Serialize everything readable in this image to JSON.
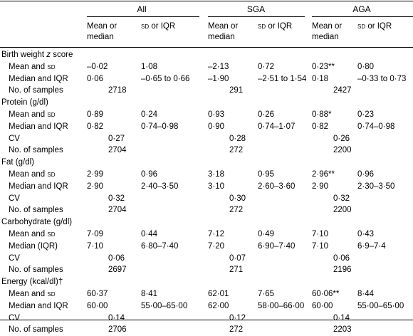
{
  "header": {
    "groups": [
      "All",
      "SGA",
      "AGA"
    ],
    "sub1_line1": "Mean or",
    "sub1_line2": "median",
    "sub2_sd": "SD",
    "sub2_rest": " or IQR"
  },
  "rows": [
    {
      "type": "section",
      "label": "Birth weight ",
      "label_italic": "z",
      "label_after": " score"
    },
    {
      "type": "data",
      "label": "Mean and ",
      "label_sc": "SD",
      "cells": [
        "–0·02",
        "1·08",
        "–2·13",
        "0·72",
        "0·23**",
        "0·80"
      ]
    },
    {
      "type": "data",
      "label": "Median and IQR",
      "cells": [
        "0·06",
        "–0·65 to 0·66",
        "–1·90",
        "–2·51 to 1·54",
        "0·18",
        "–0·33 to 0·73"
      ]
    },
    {
      "type": "count",
      "label": "No. of samples",
      "cells": [
        "2718",
        "291",
        "2427"
      ]
    },
    {
      "type": "section",
      "label": "Protein (g/dl)"
    },
    {
      "type": "data",
      "label": "Mean and ",
      "label_sc": "SD",
      "cells": [
        "0·89",
        "0·24",
        "0·93",
        "0·26",
        "0·88*",
        "0·23"
      ]
    },
    {
      "type": "data",
      "label": "Median and IQR",
      "cells": [
        "0·82",
        "0·74–0·98",
        "0·90",
        "0·74–1·07",
        "0·82",
        "0·74–0·98"
      ]
    },
    {
      "type": "count",
      "label": "CV",
      "cells": [
        "0·27",
        "0·28",
        "0·26"
      ]
    },
    {
      "type": "count",
      "label": "No. of samples",
      "cells": [
        "2704",
        "272",
        "2200"
      ]
    },
    {
      "type": "section",
      "label": "Fat (g/dl)"
    },
    {
      "type": "data",
      "label": "Mean and ",
      "label_sc": "SD",
      "cells": [
        "2·99",
        "0·96",
        "3·18",
        "0·95",
        "2·96**",
        "0·96"
      ]
    },
    {
      "type": "data",
      "label": "Median and IQR",
      "cells": [
        "2·90",
        "2·40–3·50",
        "3·10",
        "2·60–3·60",
        "2·90",
        "2·30–3·50"
      ]
    },
    {
      "type": "count",
      "label": "CV",
      "cells": [
        "0·32",
        "0·30",
        "0·32"
      ]
    },
    {
      "type": "count",
      "label": "No. of samples",
      "cells": [
        "2704",
        "272",
        "2200"
      ]
    },
    {
      "type": "section",
      "label": "Carbohydrate (g/dl)"
    },
    {
      "type": "data",
      "label": "Mean and ",
      "label_sc": "SD",
      "cells": [
        "7·09",
        "0·44",
        "7·12",
        "0·49",
        "7·10",
        "0·43"
      ]
    },
    {
      "type": "data",
      "label": "Median (IQR)",
      "cells": [
        "7·10",
        "6·80–7·40",
        "7·20",
        "6·90–7·40",
        "7·10",
        "6·9–7·4"
      ]
    },
    {
      "type": "count",
      "label": "CV",
      "cells": [
        "0·06",
        "0·07",
        "0·06"
      ]
    },
    {
      "type": "count",
      "label": "No. of samples",
      "cells": [
        "2697",
        "271",
        "2196"
      ]
    },
    {
      "type": "section",
      "label": "Energy (kcal/dl)†"
    },
    {
      "type": "data",
      "label": "Mean and ",
      "label_sc": "SD",
      "cells": [
        "60·37",
        "8·41",
        "62·01",
        "7·65",
        "60·06**",
        "8·44"
      ]
    },
    {
      "type": "data",
      "label": "Median and IQR",
      "cells": [
        "60·00",
        "55·00–65·00",
        "62·00",
        "58·00–66·00",
        "60·00",
        "55·00–65·00"
      ]
    },
    {
      "type": "count",
      "label": "CV",
      "cells": [
        "0·14",
        "0·12",
        "0·14"
      ]
    },
    {
      "type": "count",
      "label": "No. of samples",
      "cells": [
        "2706",
        "272",
        "2203"
      ]
    }
  ]
}
